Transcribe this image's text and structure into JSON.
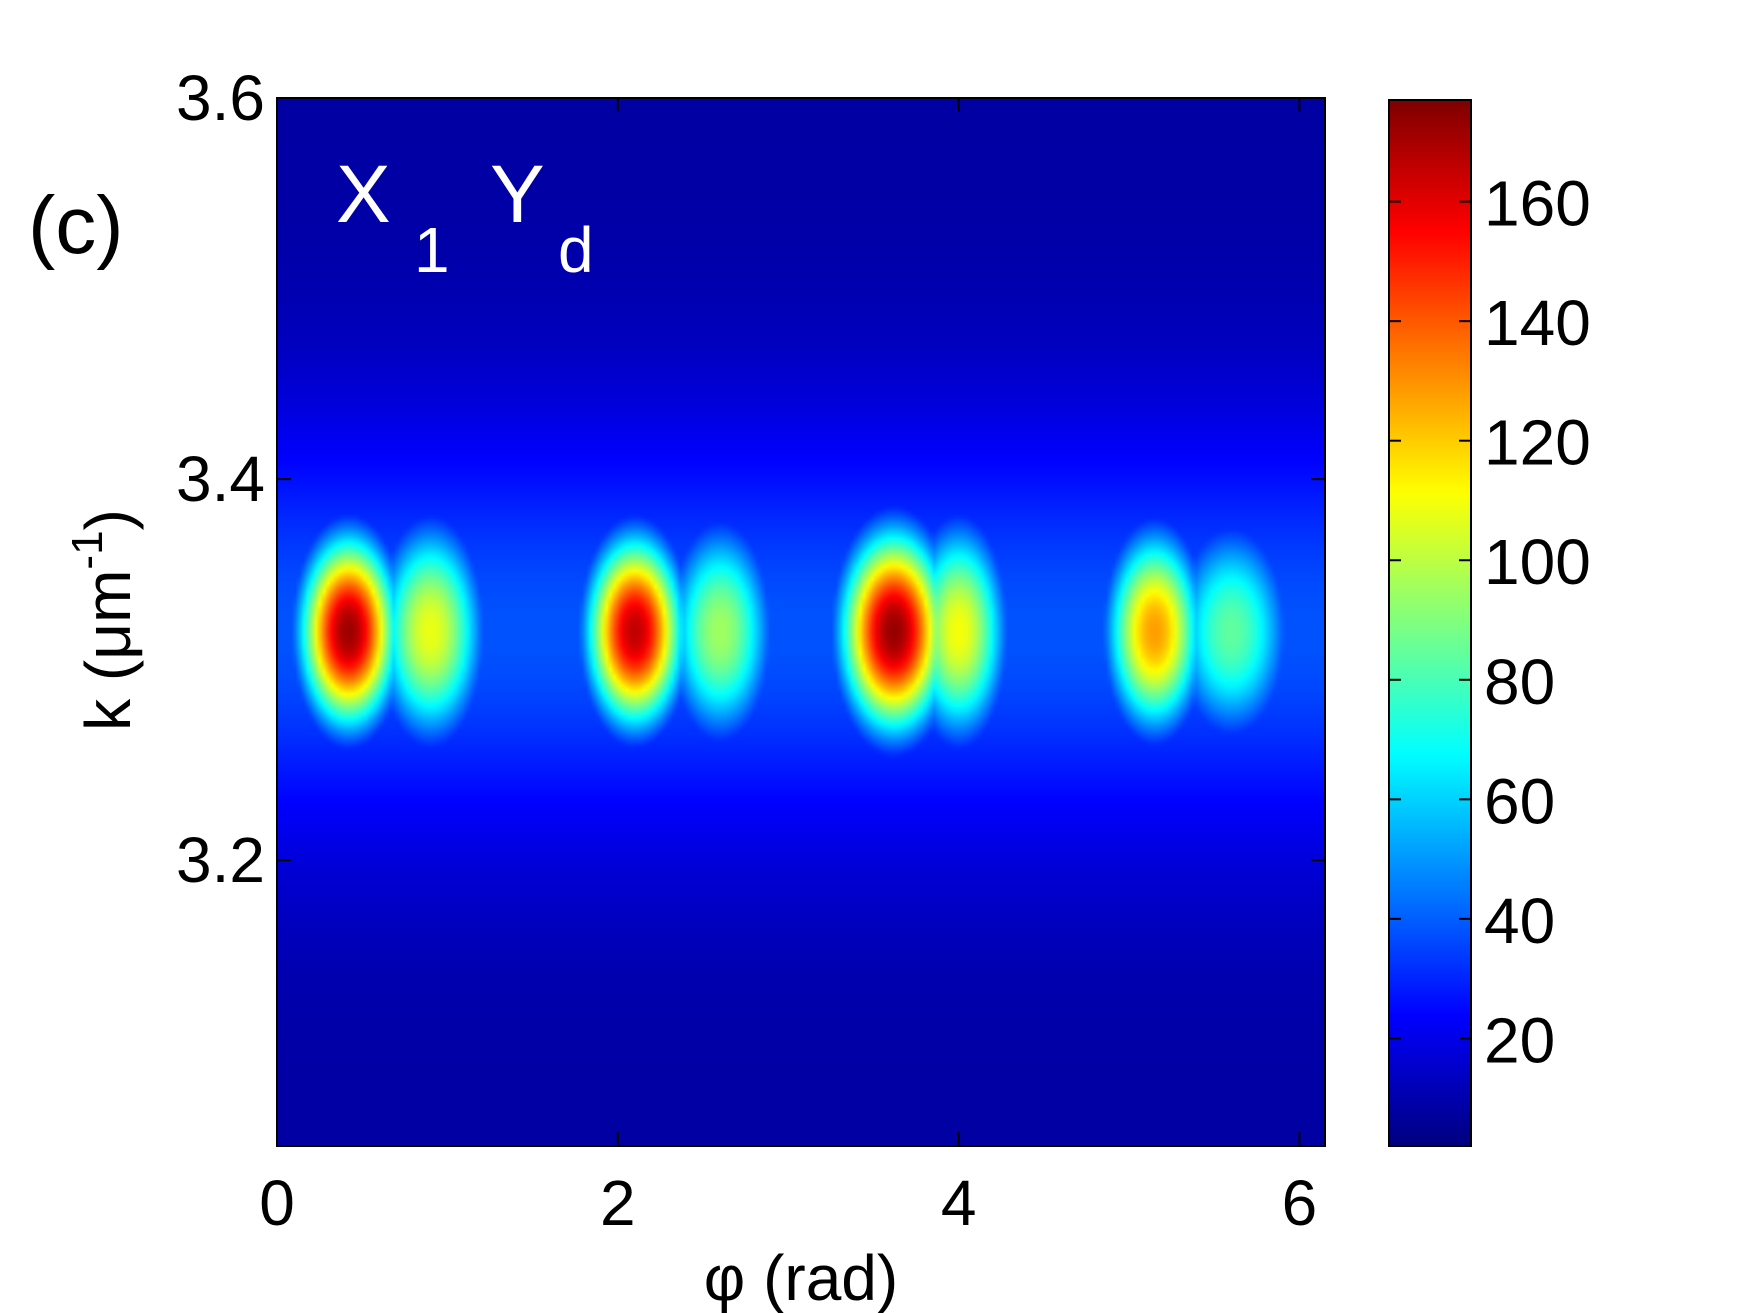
{
  "chart_data": {
    "type": "heatmap",
    "panel_label": "(c)",
    "annotation": {
      "main_x": "X",
      "sub_x": "1",
      "main_y": "Y",
      "sub_y": "d"
    },
    "xlabel": "φ (rad)",
    "ylabel_main": "k (μm",
    "ylabel_sup": "-1",
    "ylabel_close": ")",
    "xlim": [
      0,
      6.15
    ],
    "ylim": [
      3.05,
      3.6
    ],
    "x_ticks": [
      0,
      2,
      4,
      6
    ],
    "x_tick_labels": [
      "0",
      "2",
      "4",
      "6"
    ],
    "y_ticks": [
      3.2,
      3.4,
      3.6
    ],
    "y_tick_labels": [
      "3.2",
      "3.4",
      "3.6"
    ],
    "colorbar": {
      "colormap": "jet",
      "range": [
        2,
        177
      ],
      "ticks": [
        20,
        40,
        60,
        80,
        100,
        120,
        140,
        160
      ],
      "tick_labels": [
        "20",
        "40",
        "60",
        "80",
        "100",
        "120",
        "140",
        "160"
      ]
    },
    "background_level": 8,
    "blobs": [
      {
        "x": 0.42,
        "y": 3.32,
        "peak": 172,
        "sx": 0.2,
        "sy": 0.035
      },
      {
        "x": 0.9,
        "y": 3.32,
        "peak": 108,
        "sx": 0.22,
        "sy": 0.04
      },
      {
        "x": 2.1,
        "y": 3.32,
        "peak": 166,
        "sx": 0.2,
        "sy": 0.035
      },
      {
        "x": 2.6,
        "y": 3.32,
        "peak": 95,
        "sx": 0.22,
        "sy": 0.04
      },
      {
        "x": 3.62,
        "y": 3.32,
        "peak": 173,
        "sx": 0.22,
        "sy": 0.037
      },
      {
        "x": 4.0,
        "y": 3.32,
        "peak": 110,
        "sx": 0.2,
        "sy": 0.04
      },
      {
        "x": 5.15,
        "y": 3.32,
        "peak": 128,
        "sx": 0.2,
        "sy": 0.037
      },
      {
        "x": 5.6,
        "y": 3.32,
        "peak": 84,
        "sx": 0.25,
        "sy": 0.04
      }
    ]
  }
}
